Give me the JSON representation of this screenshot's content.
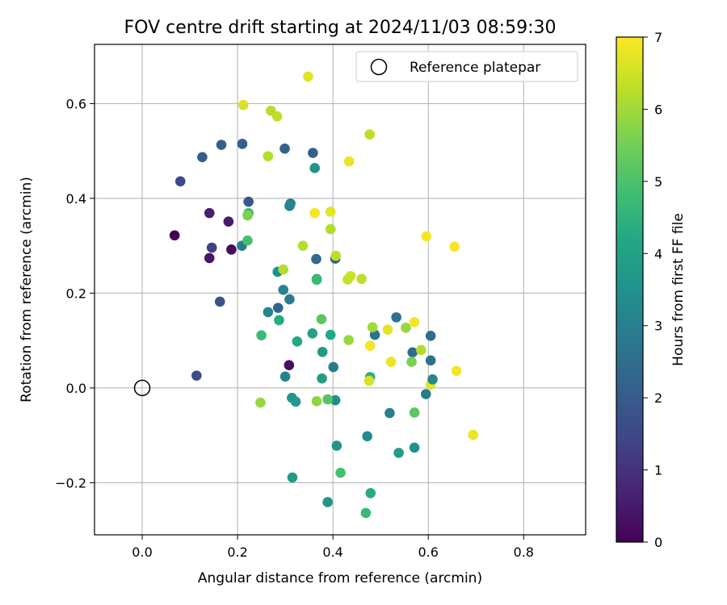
{
  "chart_data": {
    "type": "scatter",
    "title": "FOV centre drift starting at 2024/11/03 08:59:30",
    "xlabel": "Angular distance from reference (arcmin)",
    "ylabel": "Rotation from reference (arcmin)",
    "xlim": [
      -0.1,
      0.93
    ],
    "ylim": [
      -0.31,
      0.725
    ],
    "xticks": [
      0.0,
      0.2,
      0.4,
      0.6,
      0.8
    ],
    "xtick_labels": [
      "0.0",
      "0.2",
      "0.4",
      "0.6",
      "0.8"
    ],
    "yticks": [
      -0.2,
      0.0,
      0.2,
      0.4,
      0.6
    ],
    "ytick_labels": [
      "−0.2",
      "0.0",
      "0.2",
      "0.4",
      "0.6"
    ],
    "grid": true,
    "legend": {
      "position": "top-right",
      "label": "Reference platepar"
    },
    "reference_point": {
      "x": 0.0,
      "y": 0.0
    },
    "colorbar": {
      "label": "Hours from first FF file",
      "min": 0,
      "max": 7,
      "ticks": [
        0,
        1,
        2,
        3,
        4,
        5,
        6,
        7
      ],
      "tick_labels": [
        "0",
        "1",
        "2",
        "3",
        "4",
        "5",
        "6",
        "7"
      ],
      "colormap": "viridis"
    },
    "points": [
      {
        "x": 0.068,
        "y": 0.322,
        "c": 0.0
      },
      {
        "x": 0.141,
        "y": 0.274,
        "c": 0.4
      },
      {
        "x": 0.187,
        "y": 0.292,
        "c": 0.2
      },
      {
        "x": 0.141,
        "y": 0.369,
        "c": 0.6
      },
      {
        "x": 0.181,
        "y": 0.351,
        "c": 0.5
      },
      {
        "x": 0.308,
        "y": 0.048,
        "c": 0.3
      },
      {
        "x": 0.146,
        "y": 0.296,
        "c": 1.3
      },
      {
        "x": 0.114,
        "y": 0.026,
        "c": 1.6
      },
      {
        "x": 0.163,
        "y": 0.182,
        "c": 1.8
      },
      {
        "x": 0.08,
        "y": 0.436,
        "c": 1.5
      },
      {
        "x": 0.126,
        "y": 0.487,
        "c": 2.0
      },
      {
        "x": 0.166,
        "y": 0.513,
        "c": 2.1
      },
      {
        "x": 0.21,
        "y": 0.515,
        "c": 2.1
      },
      {
        "x": 0.223,
        "y": 0.393,
        "c": 1.9
      },
      {
        "x": 0.299,
        "y": 0.505,
        "c": 2.2
      },
      {
        "x": 0.358,
        "y": 0.496,
        "c": 2.1
      },
      {
        "x": 0.365,
        "y": 0.272,
        "c": 2.4
      },
      {
        "x": 0.405,
        "y": 0.273,
        "c": 2.2
      },
      {
        "x": 0.285,
        "y": 0.169,
        "c": 2.3
      },
      {
        "x": 0.533,
        "y": 0.149,
        "c": 2.7
      },
      {
        "x": 0.605,
        "y": 0.11,
        "c": 2.5
      },
      {
        "x": 0.605,
        "y": 0.058,
        "c": 2.6
      },
      {
        "x": 0.567,
        "y": 0.075,
        "c": 2.5
      },
      {
        "x": 0.595,
        "y": -0.013,
        "c": 2.9
      },
      {
        "x": 0.519,
        "y": -0.053,
        "c": 3.0
      },
      {
        "x": 0.488,
        "y": 0.112,
        "c": 2.7
      },
      {
        "x": 0.401,
        "y": 0.044,
        "c": 2.9
      },
      {
        "x": 0.309,
        "y": 0.187,
        "c": 2.9
      },
      {
        "x": 0.296,
        "y": 0.207,
        "c": 3.1
      },
      {
        "x": 0.311,
        "y": 0.389,
        "c": 3.0
      },
      {
        "x": 0.309,
        "y": 0.384,
        "c": 3.2
      },
      {
        "x": 0.209,
        "y": 0.3,
        "c": 3.0
      },
      {
        "x": 0.284,
        "y": 0.245,
        "c": 3.5
      },
      {
        "x": 0.264,
        "y": 0.16,
        "c": 3.2
      },
      {
        "x": 0.3,
        "y": 0.024,
        "c": 3.1
      },
      {
        "x": 0.405,
        "y": -0.026,
        "c": 3.4
      },
      {
        "x": 0.362,
        "y": 0.464,
        "c": 3.6
      },
      {
        "x": 0.571,
        "y": -0.126,
        "c": 3.5
      },
      {
        "x": 0.538,
        "y": -0.137,
        "c": 3.9
      },
      {
        "x": 0.472,
        "y": -0.102,
        "c": 3.4
      },
      {
        "x": 0.408,
        "y": -0.122,
        "c": 3.6
      },
      {
        "x": 0.389,
        "y": -0.241,
        "c": 3.6
      },
      {
        "x": 0.315,
        "y": -0.189,
        "c": 3.8
      },
      {
        "x": 0.314,
        "y": -0.021,
        "c": 3.7
      },
      {
        "x": 0.322,
        "y": -0.029,
        "c": 3.8
      },
      {
        "x": 0.378,
        "y": 0.076,
        "c": 3.8
      },
      {
        "x": 0.377,
        "y": 0.02,
        "c": 3.9
      },
      {
        "x": 0.357,
        "y": 0.115,
        "c": 4.0
      },
      {
        "x": 0.395,
        "y": 0.112,
        "c": 4.2
      },
      {
        "x": 0.287,
        "y": 0.143,
        "c": 4.3
      },
      {
        "x": 0.325,
        "y": 0.098,
        "c": 4.2
      },
      {
        "x": 0.366,
        "y": 0.23,
        "c": 4.5
      },
      {
        "x": 0.366,
        "y": 0.228,
        "c": 4.7
      },
      {
        "x": 0.223,
        "y": 0.369,
        "c": 4.8
      },
      {
        "x": 0.221,
        "y": 0.311,
        "c": 4.9
      },
      {
        "x": 0.25,
        "y": 0.111,
        "c": 4.7
      },
      {
        "x": 0.478,
        "y": 0.023,
        "c": 4.4
      },
      {
        "x": 0.479,
        "y": -0.222,
        "c": 4.3
      },
      {
        "x": 0.469,
        "y": -0.264,
        "c": 4.7
      },
      {
        "x": 0.416,
        "y": -0.179,
        "c": 4.9
      },
      {
        "x": 0.389,
        "y": -0.024,
        "c": 5.1
      },
      {
        "x": 0.376,
        "y": 0.145,
        "c": 5.2
      },
      {
        "x": 0.571,
        "y": -0.052,
        "c": 5.2
      },
      {
        "x": 0.565,
        "y": 0.055,
        "c": 5.6
      },
      {
        "x": 0.221,
        "y": 0.364,
        "c": 5.6
      },
      {
        "x": 0.366,
        "y": -0.028,
        "c": 5.8
      },
      {
        "x": 0.248,
        "y": -0.031,
        "c": 5.9
      },
      {
        "x": 0.433,
        "y": 0.101,
        "c": 5.9
      },
      {
        "x": 0.483,
        "y": 0.128,
        "c": 6.0
      },
      {
        "x": 0.553,
        "y": 0.127,
        "c": 5.9
      },
      {
        "x": 0.585,
        "y": 0.08,
        "c": 6.2
      },
      {
        "x": 0.296,
        "y": 0.25,
        "c": 6.2
      },
      {
        "x": 0.337,
        "y": 0.3,
        "c": 6.2
      },
      {
        "x": 0.27,
        "y": 0.585,
        "c": 6.2
      },
      {
        "x": 0.283,
        "y": 0.573,
        "c": 6.3
      },
      {
        "x": 0.264,
        "y": 0.489,
        "c": 6.2
      },
      {
        "x": 0.395,
        "y": 0.335,
        "c": 6.2
      },
      {
        "x": 0.406,
        "y": 0.279,
        "c": 6.3
      },
      {
        "x": 0.46,
        "y": 0.23,
        "c": 6.3
      },
      {
        "x": 0.437,
        "y": 0.236,
        "c": 6.5
      },
      {
        "x": 0.431,
        "y": 0.229,
        "c": 6.4
      },
      {
        "x": 0.477,
        "y": 0.535,
        "c": 6.3
      },
      {
        "x": 0.212,
        "y": 0.597,
        "c": 6.6
      },
      {
        "x": 0.348,
        "y": 0.657,
        "c": 6.7
      },
      {
        "x": 0.395,
        "y": 0.372,
        "c": 6.7
      },
      {
        "x": 0.434,
        "y": 0.478,
        "c": 6.8
      },
      {
        "x": 0.362,
        "y": 0.369,
        "c": 6.9
      },
      {
        "x": 0.515,
        "y": 0.123,
        "c": 6.7
      },
      {
        "x": 0.522,
        "y": 0.055,
        "c": 6.8
      },
      {
        "x": 0.476,
        "y": 0.015,
        "c": 6.6
      },
      {
        "x": 0.478,
        "y": 0.089,
        "c": 6.9
      },
      {
        "x": 0.571,
        "y": 0.139,
        "c": 6.9
      },
      {
        "x": 0.596,
        "y": 0.32,
        "c": 6.9
      },
      {
        "x": 0.655,
        "y": 0.298,
        "c": 6.9
      },
      {
        "x": 0.605,
        "y": 0.007,
        "c": 6.7
      },
      {
        "x": 0.659,
        "y": 0.036,
        "c": 6.9
      },
      {
        "x": 0.694,
        "y": -0.099,
        "c": 6.8
      },
      {
        "x": 0.609,
        "y": 0.018,
        "c": 3.2
      }
    ]
  }
}
